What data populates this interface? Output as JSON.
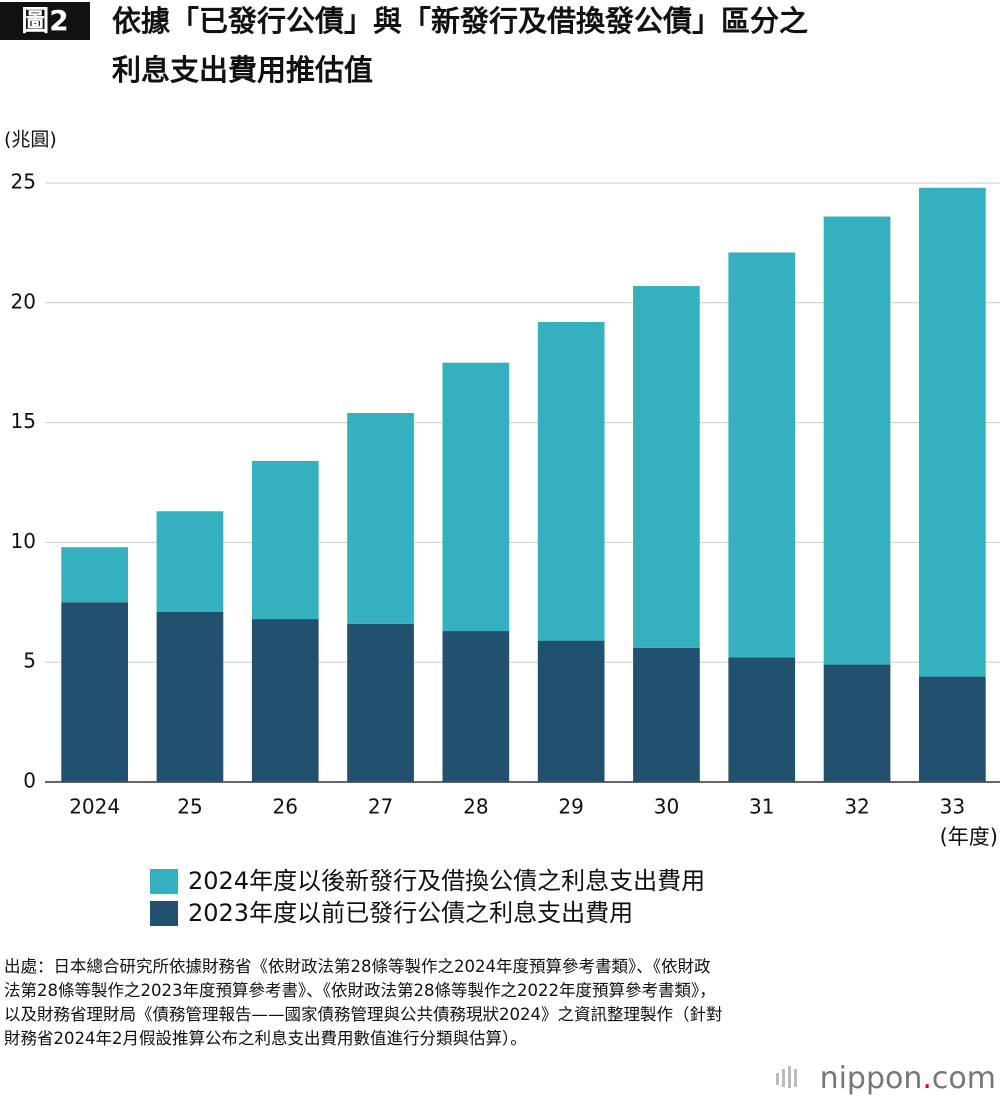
{
  "chart_data": {
    "type": "stacked_bar",
    "badge": "圖2",
    "title_lines": [
      "依據「已發行公債」與「新發行及借換發公債」區分之",
      "利息支出費用推估值"
    ],
    "ylabel": "(兆圓)",
    "xlabel": "(年度)",
    "categories": [
      "2024",
      "25",
      "26",
      "27",
      "28",
      "29",
      "30",
      "31",
      "32",
      "33"
    ],
    "series": [
      {
        "name": "2023年度以前已發行公債之利息支出費用",
        "color": "#22506f",
        "values": [
          7.5,
          7.1,
          6.8,
          6.6,
          6.3,
          5.9,
          5.6,
          5.2,
          4.9,
          4.4
        ]
      },
      {
        "name": "2024年度以後新發行及借換公債之利息支出費用",
        "color": "#35b0bf",
        "values": [
          2.3,
          4.2,
          6.6,
          8.8,
          11.2,
          13.3,
          15.1,
          16.9,
          18.7,
          20.4
        ]
      }
    ],
    "ylim": [
      0,
      25
    ],
    "yticks": [
      0,
      5,
      10,
      15,
      20,
      25
    ],
    "grid": true,
    "source": "出處：日本總合研究所依據財務省《依財政法第28條等製作之2024年度預算參考書類》、《依財政法第28條等製作之2023年度預算參考書》、《依財政法第28條等製作之2022年度預算參考書類》，以及財務省理財局《債務管理報告——國家債務管理與公共債務現狀2024》之資訊整理製作（針對財務省2024年2月假設推算公布之利息支出費用數值進行分類與估算）。",
    "logo": [
      "nippon",
      ".",
      "com"
    ]
  }
}
